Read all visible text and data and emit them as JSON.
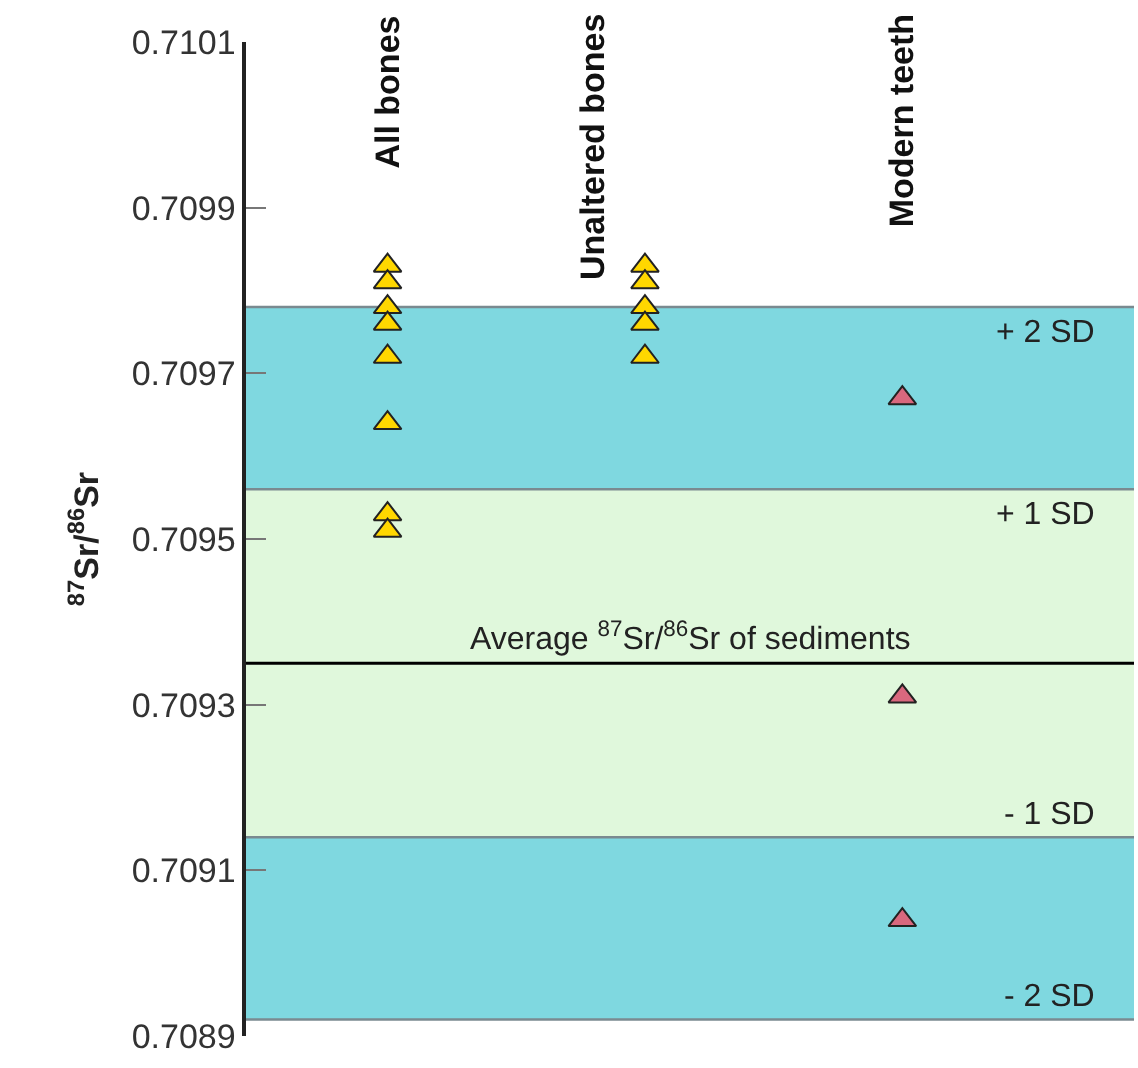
{
  "chart_data": {
    "type": "scatter",
    "ylabel": "$^{87}$Sr/$^{86}$Sr",
    "categories": [
      "All bones",
      "Unaltered bones",
      "Modern teeth"
    ],
    "series": [
      {
        "color": "#ffd700",
        "x": [
          "All bones",
          "All bones",
          "All bones",
          "All bones",
          "All bones",
          "All bones",
          "All bones",
          "All bones",
          "Unaltered bones",
          "Unaltered bones",
          "Unaltered bones",
          "Unaltered bones",
          "Unaltered bones"
        ],
        "values": [
          0.70983,
          0.70981,
          0.70978,
          0.70976,
          0.70972,
          0.70964,
          0.70953,
          0.70951,
          0.70983,
          0.70981,
          0.70978,
          0.70976,
          0.70972
        ]
      },
      {
        "color": "#d9687e",
        "x": [
          "Modern teeth",
          "Modern teeth",
          "Modern teeth"
        ],
        "values": [
          0.70967,
          0.70931,
          0.70904
        ]
      }
    ],
    "ylim": [
      0.7089,
      0.7101
    ],
    "yticks": [
      {
        "value": 0.7089,
        "label": "0.7089"
      },
      {
        "value": 0.7091,
        "label": "0.7091"
      },
      {
        "value": 0.7093,
        "label": "0.7093"
      },
      {
        "value": 0.7095,
        "label": "0.7095"
      },
      {
        "value": 0.7097,
        "label": "0.7097"
      },
      {
        "value": 0.7099,
        "label": "0.7099"
      },
      {
        "value": 0.7101,
        "label": "0.7101"
      }
    ],
    "bands": [
      {
        "axis": "y",
        "from": 0.70956,
        "to": 0.70978,
        "color": "#7fd8e0"
      },
      {
        "axis": "y",
        "from": 0.70914,
        "to": 0.70956,
        "color": "#e0f8dc"
      },
      {
        "axis": "y",
        "from": 0.70892,
        "to": 0.70914,
        "color": "#7fd8e0"
      }
    ],
    "ref_lines": [
      {
        "axis": "y",
        "value": 0.70935,
        "label": "Average $^{87}$Sr/$^{86}$Sr of sediments",
        "color": "#000000"
      },
      {
        "axis": "y",
        "value": 0.70978,
        "label": "+ 2 SD",
        "color": "#7a8a90"
      },
      {
        "axis": "y",
        "value": 0.70956,
        "label": "+ 1 SD",
        "color": "#7a8a90"
      },
      {
        "axis": "y",
        "value": 0.70914,
        "label": "- 1 SD",
        "color": "#7a8a90"
      },
      {
        "axis": "y",
        "value": 0.70892,
        "label": "- 2 SD",
        "color": "#7a8a90"
      }
    ],
    "marker": "triangle",
    "grid": false,
    "tick_labels": "y"
  }
}
